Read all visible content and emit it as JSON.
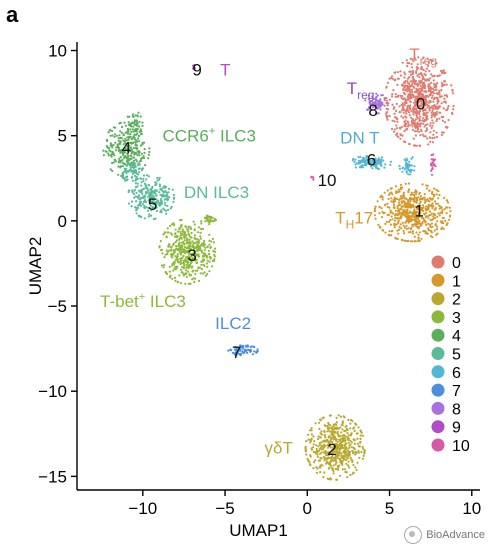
{
  "panel_label": "a",
  "watermark_text": "BioAdvance",
  "watermark_icon": "wechat-bubble-icon",
  "chart_data": {
    "type": "scatter",
    "xlabel": "UMAP1",
    "ylabel": "UMAP2",
    "xlim": [
      -14,
      10.5
    ],
    "ylim": [
      -15.8,
      10.5
    ],
    "xticks": [
      -10,
      -5,
      0,
      5,
      10
    ],
    "yticks": [
      -15,
      -10,
      -5,
      0,
      5,
      10
    ],
    "grid": false,
    "legend_position": "right",
    "series": [
      {
        "name": "0",
        "color": "#e07b6f",
        "clusters": [
          {
            "cx": 6.8,
            "cy": 7.0,
            "rx": 2.1,
            "ry": 2.6,
            "n": 700
          }
        ]
      },
      {
        "name": "1",
        "color": "#d4982b",
        "clusters": [
          {
            "cx": 6.4,
            "cy": 0.5,
            "rx": 2.3,
            "ry": 1.7,
            "n": 550
          }
        ]
      },
      {
        "name": "2",
        "color": "#b8a82e",
        "clusters": [
          {
            "cx": 1.7,
            "cy": -13.3,
            "rx": 1.8,
            "ry": 1.9,
            "n": 500
          }
        ]
      },
      {
        "name": "3",
        "color": "#8cb93a",
        "clusters": [
          {
            "cx": -7.3,
            "cy": -1.8,
            "rx": 1.7,
            "ry": 1.9,
            "n": 450
          },
          {
            "cx": -6.0,
            "cy": 0.1,
            "rx": 0.5,
            "ry": 0.3,
            "n": 30
          }
        ]
      },
      {
        "name": "4",
        "color": "#5aae5c",
        "clusters": [
          {
            "cx": -11.0,
            "cy": 4.2,
            "rx": 1.4,
            "ry": 1.6,
            "n": 260
          },
          {
            "cx": -10.5,
            "cy": 5.6,
            "rx": 0.5,
            "ry": 0.9,
            "n": 60
          }
        ]
      },
      {
        "name": "5",
        "color": "#58bb9a",
        "clusters": [
          {
            "cx": -9.5,
            "cy": 1.4,
            "rx": 1.4,
            "ry": 1.3,
            "n": 240
          },
          {
            "cx": -10.5,
            "cy": 2.8,
            "rx": 0.8,
            "ry": 0.6,
            "n": 60
          }
        ]
      },
      {
        "name": "6",
        "color": "#52b7d6",
        "clusters": [
          {
            "cx": 3.8,
            "cy": 3.4,
            "rx": 1.3,
            "ry": 0.4,
            "n": 120
          },
          {
            "cx": 6.1,
            "cy": 3.3,
            "rx": 0.5,
            "ry": 0.6,
            "n": 45
          }
        ]
      },
      {
        "name": "7",
        "color": "#4d8ee0",
        "clusters": [
          {
            "cx": -3.9,
            "cy": -7.6,
            "rx": 0.9,
            "ry": 0.3,
            "n": 70
          }
        ]
      },
      {
        "name": "8",
        "color": "#a772e0",
        "clusters": [
          {
            "cx": 4.2,
            "cy": 6.9,
            "rx": 0.7,
            "ry": 0.6,
            "n": 70
          }
        ]
      },
      {
        "name": "9",
        "color": "#b04cc4",
        "clusters": [
          {
            "cx": -6.9,
            "cy": 9.0,
            "rx": 0.15,
            "ry": 0.15,
            "n": 6
          }
        ]
      },
      {
        "name": "10",
        "color": "#d85aa6",
        "clusters": [
          {
            "cx": 7.6,
            "cy": 3.4,
            "rx": 0.2,
            "ry": 0.7,
            "n": 20
          },
          {
            "cx": 0.3,
            "cy": 2.5,
            "rx": 0.15,
            "ry": 0.15,
            "n": 5
          }
        ]
      }
    ],
    "cluster_number_labels": [
      {
        "text": "0",
        "x": 6.9,
        "y": 6.9
      },
      {
        "text": "1",
        "x": 6.8,
        "y": 0.6
      },
      {
        "text": "2",
        "x": 1.5,
        "y": -13.4
      },
      {
        "text": "3",
        "x": -7.0,
        "y": -2.0
      },
      {
        "text": "4",
        "x": -11.0,
        "y": 4.3
      },
      {
        "text": "5",
        "x": -9.4,
        "y": 1.0
      },
      {
        "text": "6",
        "x": 3.9,
        "y": 3.6
      },
      {
        "text": "7",
        "x": -4.3,
        "y": -7.7
      },
      {
        "text": "8",
        "x": 4.0,
        "y": 6.5
      },
      {
        "text": "9",
        "x": -6.7,
        "y": 8.9
      },
      {
        "text": "10",
        "x": 1.2,
        "y": 2.4
      }
    ],
    "annotations": [
      {
        "text": "T",
        "sub": "",
        "sup": "",
        "x": -5.3,
        "y": 8.9,
        "color": "#b04cc4"
      },
      {
        "text": "T",
        "sub": "reg",
        "sup": "",
        "x": 6.2,
        "y": 9.8,
        "color": "#e07b6f"
      },
      {
        "text": "T",
        "sub": "reg",
        "sup": "",
        "x": 2.4,
        "y": 7.8,
        "color": "#8a4dc4"
      },
      {
        "text": "DN T",
        "sub": "",
        "sup": "",
        "x": 2.0,
        "y": 4.9,
        "color": "#52a9d4"
      },
      {
        "text": "T",
        "sub": "H",
        "sup": "",
        "tail": "17",
        "x": 1.7,
        "y": 0.2,
        "color": "#d4982b"
      },
      {
        "text": "CCR6",
        "sub": "",
        "sup": "+",
        "tail": " ILC3",
        "x": -8.8,
        "y": 5.0,
        "color": "#5aae5c"
      },
      {
        "text": "DN ILC3",
        "sub": "",
        "sup": "",
        "x": -7.5,
        "y": 1.7,
        "color": "#58bb9a"
      },
      {
        "text": "T-bet",
        "sub": "",
        "sup": "+",
        "tail": " ILC3",
        "x": -12.6,
        "y": -4.7,
        "color": "#8cb93a"
      },
      {
        "text": "ILC2",
        "sub": "",
        "sup": "",
        "x": -5.6,
        "y": -6.0,
        "color": "#4d8ee0"
      },
      {
        "text": "γδT",
        "sub": "",
        "sup": "",
        "x": -2.6,
        "y": -13.3,
        "color": "#b8a82e"
      }
    ]
  }
}
